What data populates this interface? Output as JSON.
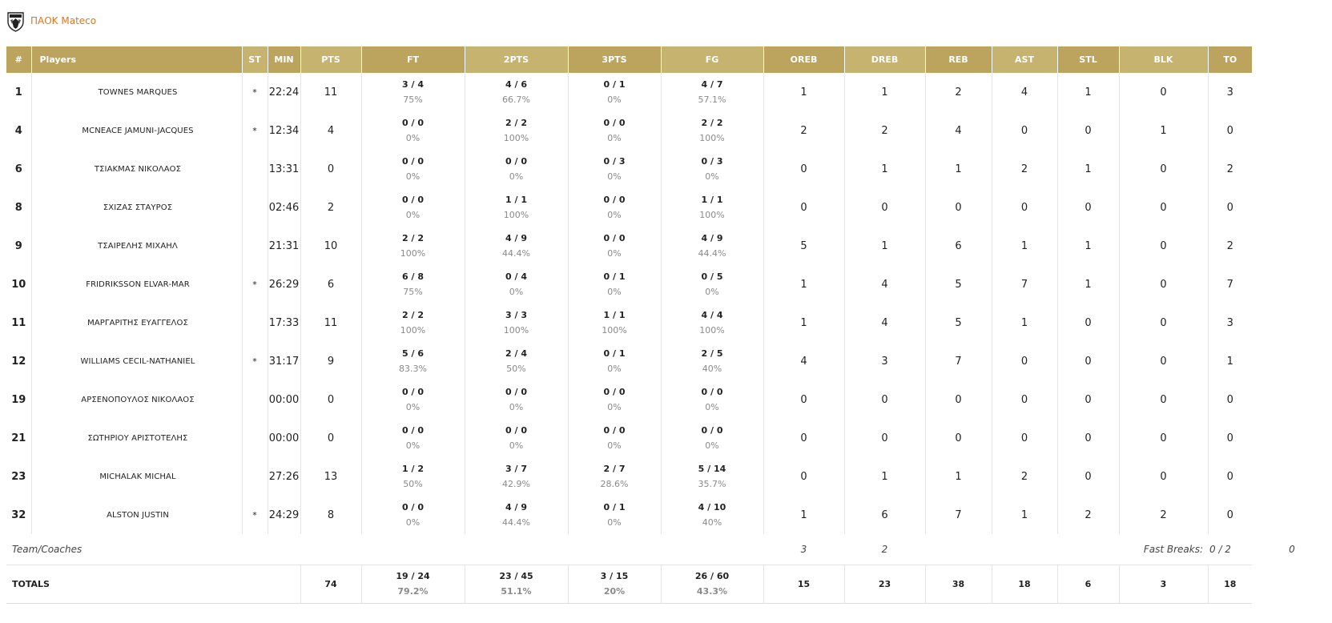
{
  "team": {
    "name": "ΠΑΟΚ Mateco",
    "logo_icon": "paok-shield-icon"
  },
  "columns": [
    "#",
    "Players",
    "ST",
    "MIN",
    "PTS",
    "FT",
    "2PTS",
    "3PTS",
    "FG",
    "OREB",
    "DREB",
    "REB",
    "AST",
    "STL",
    "BLK",
    "TO"
  ],
  "players": [
    {
      "num": "1",
      "name": "TOWNES MARQUES",
      "st": "*",
      "min": "22:24",
      "pts": "11",
      "ft": "3 / 4",
      "ft_pct": "75%",
      "p2": "4 / 6",
      "p2_pct": "66.7%",
      "p3": "0 / 1",
      "p3_pct": "0%",
      "fg": "4 / 7",
      "fg_pct": "57.1%",
      "oreb": "1",
      "dreb": "1",
      "reb": "2",
      "ast": "4",
      "stl": "1",
      "blk": "0",
      "to": "3"
    },
    {
      "num": "4",
      "name": "MCNEACE JAMUNI-JACQUES",
      "st": "*",
      "min": "12:34",
      "pts": "4",
      "ft": "0 / 0",
      "ft_pct": "0%",
      "p2": "2 / 2",
      "p2_pct": "100%",
      "p3": "0 / 0",
      "p3_pct": "0%",
      "fg": "2 / 2",
      "fg_pct": "100%",
      "oreb": "2",
      "dreb": "2",
      "reb": "4",
      "ast": "0",
      "stl": "0",
      "blk": "1",
      "to": "0"
    },
    {
      "num": "6",
      "name": "ΤΣΙΑΚΜΑΣ ΝΙΚΟΛΑΟΣ",
      "st": "",
      "min": "13:31",
      "pts": "0",
      "ft": "0 / 0",
      "ft_pct": "0%",
      "p2": "0 / 0",
      "p2_pct": "0%",
      "p3": "0 / 3",
      "p3_pct": "0%",
      "fg": "0 / 3",
      "fg_pct": "0%",
      "oreb": "0",
      "dreb": "1",
      "reb": "1",
      "ast": "2",
      "stl": "1",
      "blk": "0",
      "to": "2"
    },
    {
      "num": "8",
      "name": "ΣΧΙΖΑΣ ΣΤΑΥΡΟΣ",
      "st": "",
      "min": "02:46",
      "pts": "2",
      "ft": "0 / 0",
      "ft_pct": "0%",
      "p2": "1 / 1",
      "p2_pct": "100%",
      "p3": "0 / 0",
      "p3_pct": "0%",
      "fg": "1 / 1",
      "fg_pct": "100%",
      "oreb": "0",
      "dreb": "0",
      "reb": "0",
      "ast": "0",
      "stl": "0",
      "blk": "0",
      "to": "0"
    },
    {
      "num": "9",
      "name": "ΤΣΑΙΡΕΛΗΣ ΜΙΧΑΗΛ",
      "st": "",
      "min": "21:31",
      "pts": "10",
      "ft": "2 / 2",
      "ft_pct": "100%",
      "p2": "4 / 9",
      "p2_pct": "44.4%",
      "p3": "0 / 0",
      "p3_pct": "0%",
      "fg": "4 / 9",
      "fg_pct": "44.4%",
      "oreb": "5",
      "dreb": "1",
      "reb": "6",
      "ast": "1",
      "stl": "1",
      "blk": "0",
      "to": "2"
    },
    {
      "num": "10",
      "name": "FRIDRIKSSON ELVAR-MAR",
      "st": "*",
      "min": "26:29",
      "pts": "6",
      "ft": "6 / 8",
      "ft_pct": "75%",
      "p2": "0 / 4",
      "p2_pct": "0%",
      "p3": "0 / 1",
      "p3_pct": "0%",
      "fg": "0 / 5",
      "fg_pct": "0%",
      "oreb": "1",
      "dreb": "4",
      "reb": "5",
      "ast": "7",
      "stl": "1",
      "blk": "0",
      "to": "7"
    },
    {
      "num": "11",
      "name": "ΜΑΡΓΑΡΙΤΗΣ ΕΥΑΓΓΕΛΟΣ",
      "st": "",
      "min": "17:33",
      "pts": "11",
      "ft": "2 / 2",
      "ft_pct": "100%",
      "p2": "3 / 3",
      "p2_pct": "100%",
      "p3": "1 / 1",
      "p3_pct": "100%",
      "fg": "4 / 4",
      "fg_pct": "100%",
      "oreb": "1",
      "dreb": "4",
      "reb": "5",
      "ast": "1",
      "stl": "0",
      "blk": "0",
      "to": "3"
    },
    {
      "num": "12",
      "name": "WILLIAMS CECIL-NATHANIEL",
      "st": "*",
      "min": "31:17",
      "pts": "9",
      "ft": "5 / 6",
      "ft_pct": "83.3%",
      "p2": "2 / 4",
      "p2_pct": "50%",
      "p3": "0 / 1",
      "p3_pct": "0%",
      "fg": "2 / 5",
      "fg_pct": "40%",
      "oreb": "4",
      "dreb": "3",
      "reb": "7",
      "ast": "0",
      "stl": "0",
      "blk": "0",
      "to": "1"
    },
    {
      "num": "19",
      "name": "ΑΡΣΕΝΟΠΟΥΛΟΣ ΝΙΚΟΛΑΟΣ",
      "st": "",
      "min": "00:00",
      "pts": "0",
      "ft": "0 / 0",
      "ft_pct": "0%",
      "p2": "0 / 0",
      "p2_pct": "0%",
      "p3": "0 / 0",
      "p3_pct": "0%",
      "fg": "0 / 0",
      "fg_pct": "0%",
      "oreb": "0",
      "dreb": "0",
      "reb": "0",
      "ast": "0",
      "stl": "0",
      "blk": "0",
      "to": "0"
    },
    {
      "num": "21",
      "name": "ΣΩΤΗΡΙΟΥ ΑΡΙΣΤΟΤΕΛΗΣ",
      "st": "",
      "min": "00:00",
      "pts": "0",
      "ft": "0 / 0",
      "ft_pct": "0%",
      "p2": "0 / 0",
      "p2_pct": "0%",
      "p3": "0 / 0",
      "p3_pct": "0%",
      "fg": "0 / 0",
      "fg_pct": "0%",
      "oreb": "0",
      "dreb": "0",
      "reb": "0",
      "ast": "0",
      "stl": "0",
      "blk": "0",
      "to": "0"
    },
    {
      "num": "23",
      "name": "MICHALAK MICHAL",
      "st": "",
      "min": "27:26",
      "pts": "13",
      "ft": "1 / 2",
      "ft_pct": "50%",
      "p2": "3 / 7",
      "p2_pct": "42.9%",
      "p3": "2 / 7",
      "p3_pct": "28.6%",
      "fg": "5 / 14",
      "fg_pct": "35.7%",
      "oreb": "0",
      "dreb": "1",
      "reb": "1",
      "ast": "2",
      "stl": "0",
      "blk": "0",
      "to": "0"
    },
    {
      "num": "32",
      "name": "ALSTON JUSTIN",
      "st": "*",
      "min": "24:29",
      "pts": "8",
      "ft": "0 / 0",
      "ft_pct": "0%",
      "p2": "4 / 9",
      "p2_pct": "44.4%",
      "p3": "0 / 1",
      "p3_pct": "0%",
      "fg": "4 / 10",
      "fg_pct": "40%",
      "oreb": "1",
      "dreb": "6",
      "reb": "7",
      "ast": "1",
      "stl": "2",
      "blk": "2",
      "to": "0"
    }
  ],
  "team_row": {
    "label": "Team/Coaches",
    "oreb": "3",
    "dreb": "2",
    "fast_breaks_label": "Fast Breaks:",
    "fast_breaks_value": "0 / 2",
    "to": "0"
  },
  "totals": {
    "label": "TOTALS",
    "pts": "74",
    "ft": "19 / 24",
    "ft_pct": "79.2%",
    "p2": "23 / 45",
    "p2_pct": "51.1%",
    "p3": "3 / 15",
    "p3_pct": "20%",
    "fg": "26 / 60",
    "fg_pct": "43.3%",
    "oreb": "15",
    "dreb": "23",
    "reb": "38",
    "ast": "18",
    "stl": "6",
    "blk": "3",
    "to": "18"
  },
  "colors": {
    "header_dark": "#bda45e",
    "header_light": "#c6b370",
    "team_name": "#e2751f"
  }
}
